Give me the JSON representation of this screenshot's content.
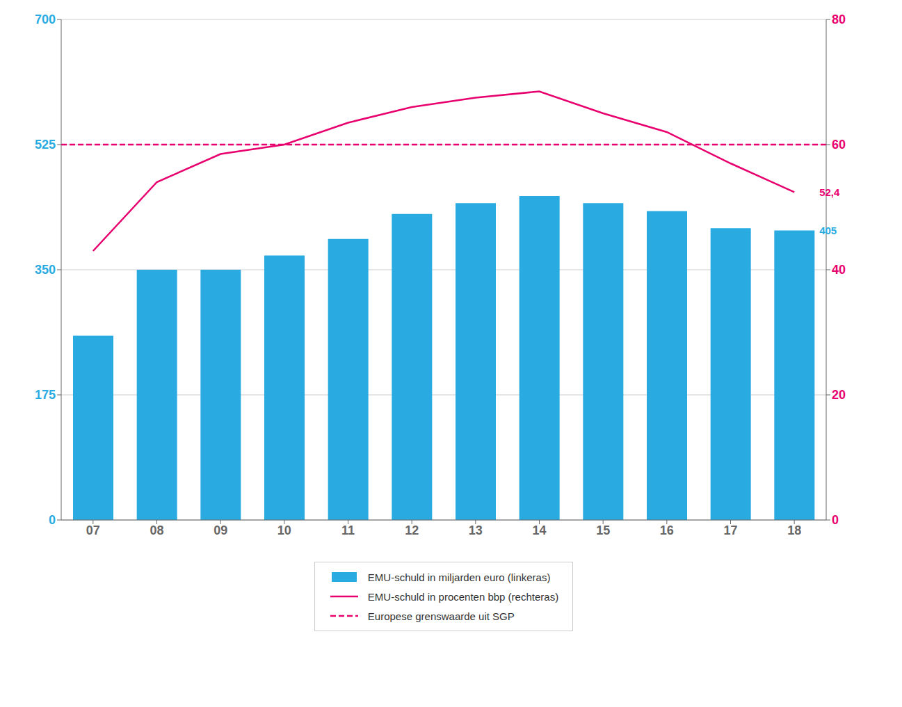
{
  "chart_data": {
    "type": "bar",
    "categories": [
      "07",
      "08",
      "09",
      "10",
      "11",
      "12",
      "13",
      "14",
      "15",
      "16",
      "17",
      "18"
    ],
    "series": [
      {
        "name": "EMU-schuld in miljarden euro (linkeras)",
        "type": "bar",
        "color": "#29ABE2",
        "values": [
          258,
          350,
          350,
          370,
          393,
          428,
          443,
          453,
          443,
          432,
          408,
          405
        ]
      },
      {
        "name": "EMU-schuld in procenten bbp (rechteras)",
        "type": "line",
        "color": "#E8006E",
        "axis": "y2",
        "values": [
          43.0,
          54.0,
          58.5,
          60.0,
          63.5,
          66.0,
          67.5,
          68.5,
          65.0,
          62.0,
          57.0,
          52.4
        ]
      },
      {
        "name": "Europese grenswaarde uit SGP",
        "type": "line",
        "line_style": "dashed",
        "color": "#E8006E",
        "axis": "y2",
        "value": 60
      }
    ],
    "ylim": [
      0,
      700
    ],
    "yticks": [
      0,
      175,
      350,
      525,
      700
    ],
    "y2lim": [
      0,
      80
    ],
    "y2ticks": [
      0,
      20,
      40,
      60,
      80
    ],
    "grid": true,
    "legend": "bottom",
    "annotations": [
      {
        "text": "405",
        "x": "18",
        "y": 405,
        "color": "#29ABE2"
      },
      {
        "text": "52,4",
        "x": "18",
        "y": 52.4,
        "axis": "y2",
        "color": "#E8006E"
      }
    ]
  }
}
